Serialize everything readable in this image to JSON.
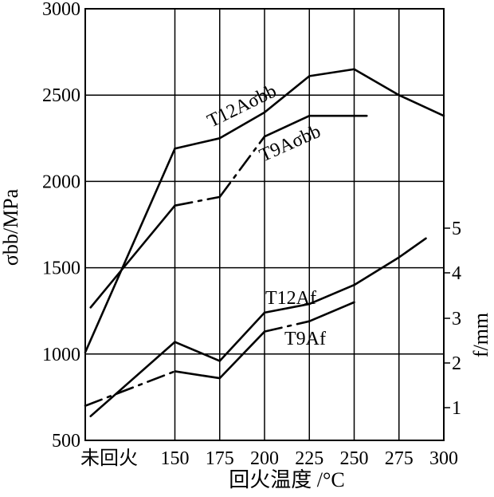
{
  "chart_data": {
    "type": "line",
    "xlabel": "回火温度 /°C",
    "ylabel_left": "σbb/MPa",
    "ylabel_right": "f/mm",
    "x_categories": [
      "未回火",
      "150",
      "175",
      "200",
      "225",
      "250",
      "275",
      "300"
    ],
    "x_values": [
      100,
      150,
      175,
      200,
      225,
      250,
      275,
      300
    ],
    "ylim_left": [
      500,
      3000
    ],
    "yticks_left": [
      "500",
      "1000",
      "1500",
      "2000",
      "2500",
      "3000"
    ],
    "ylim_right_ticks": [
      "1",
      "2",
      "3",
      "4",
      "5"
    ],
    "grid": true,
    "series": [
      {
        "name": "T12A σbb",
        "axis": "left",
        "label": "T12Aσbb",
        "points": [
          [
            100,
            1010
          ],
          [
            150,
            2190
          ],
          [
            175,
            2250
          ],
          [
            200,
            2400
          ],
          [
            225,
            2610
          ],
          [
            250,
            2650
          ],
          [
            275,
            2500
          ],
          [
            300,
            2380
          ]
        ],
        "dashed_segments": []
      },
      {
        "name": "T9A σbb",
        "axis": "left",
        "label": "T9Aσbb",
        "points": [
          [
            103,
            1270
          ],
          [
            150,
            1860
          ],
          [
            175,
            1910
          ],
          [
            200,
            2260
          ],
          [
            225,
            2380
          ],
          [
            257,
            2380
          ]
        ],
        "dashed_segments": [
          [
            1,
            2
          ],
          [
            2,
            3
          ]
        ]
      },
      {
        "name": "T12A f",
        "axis": "right",
        "label": "T12Af",
        "points": [
          [
            103,
            640
          ],
          [
            150,
            1070
          ],
          [
            175,
            960
          ],
          [
            200,
            1240
          ],
          [
            225,
            1290
          ],
          [
            250,
            1400
          ],
          [
            275,
            1560
          ],
          [
            290,
            1670
          ]
        ],
        "dashed_segments": []
      },
      {
        "name": "T9A f",
        "axis": "right",
        "label": "T9Af",
        "points": [
          [
            100,
            700
          ],
          [
            150,
            900
          ],
          [
            175,
            860
          ],
          [
            200,
            1130
          ],
          [
            225,
            1190
          ],
          [
            250,
            1300
          ]
        ],
        "dashed_segments": [
          [
            0,
            1
          ],
          [
            3,
            4
          ]
        ]
      }
    ]
  }
}
